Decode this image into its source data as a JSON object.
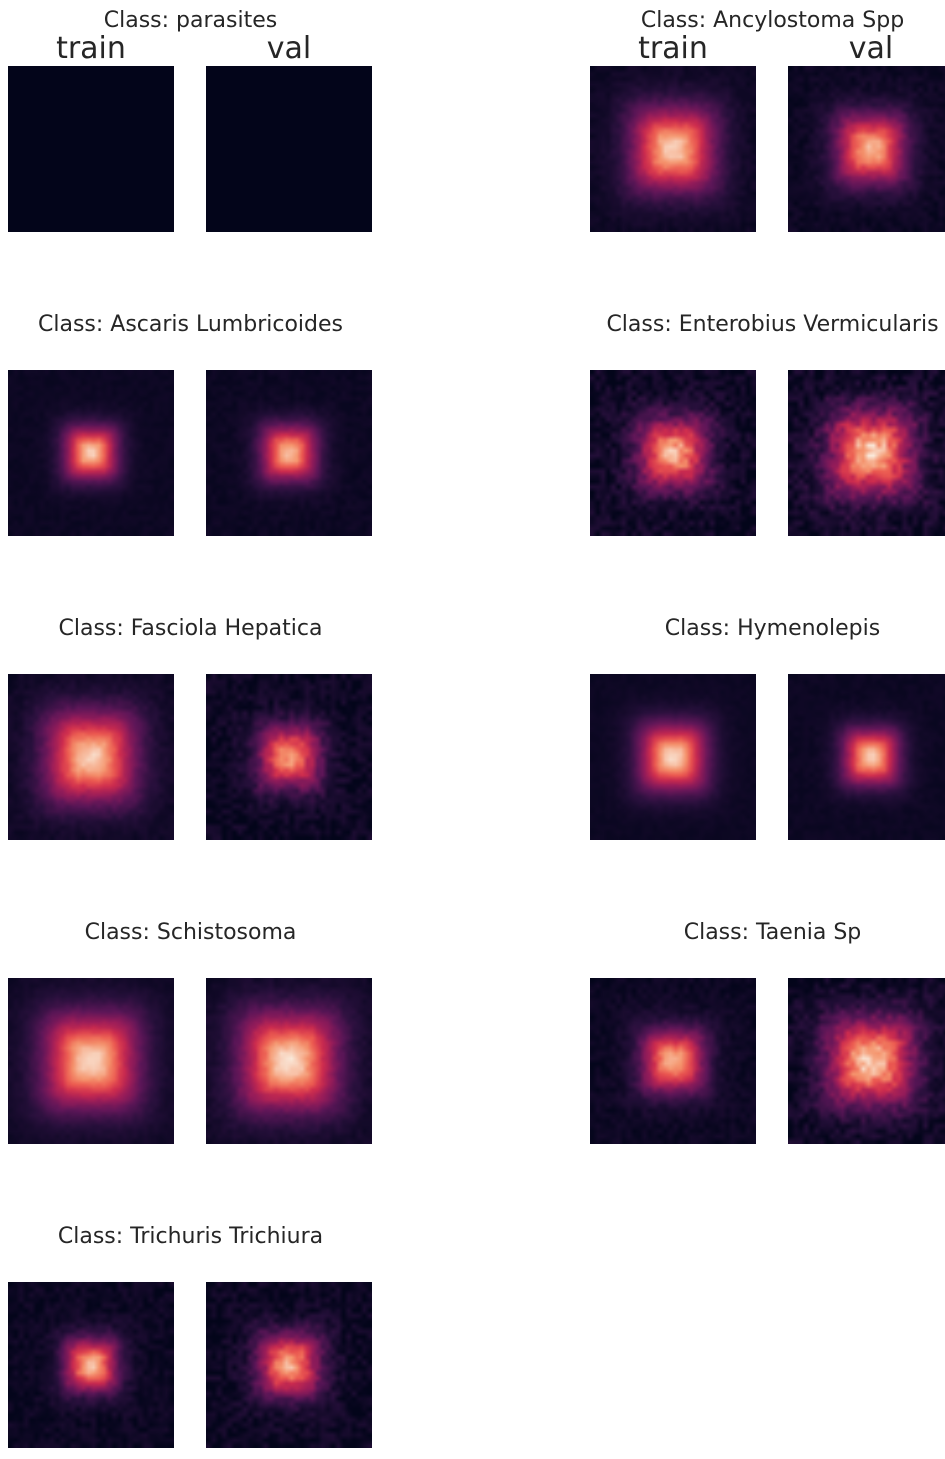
{
  "chart_data": {
    "type": "heatmap",
    "colormap": "rocket",
    "panels": [
      {
        "title": "Class: parasites",
        "labels": [
          "train",
          "val"
        ],
        "intensity": [
          0.0,
          0.0
        ],
        "spread": [
          0.55,
          0.55
        ],
        "noise": [
          0.0,
          0.0
        ]
      },
      {
        "title": "Class: Ancylostoma Spp",
        "labels": [
          "train",
          "val"
        ],
        "intensity": [
          0.95,
          0.9
        ],
        "spread": [
          0.6,
          0.5
        ],
        "noise": [
          0.06,
          0.08
        ]
      },
      {
        "title": "Class: Ascaris Lumbricoides",
        "labels": [],
        "intensity": [
          0.95,
          0.92
        ],
        "spread": [
          0.38,
          0.4
        ],
        "noise": [
          0.04,
          0.05
        ]
      },
      {
        "title": "Class: Enterobius Vermicularis",
        "labels": [],
        "intensity": [
          0.9,
          0.95
        ],
        "spread": [
          0.5,
          0.6
        ],
        "noise": [
          0.18,
          0.2
        ]
      },
      {
        "title": "Class: Fasciola Hepatica",
        "labels": [],
        "intensity": [
          0.95,
          0.85
        ],
        "spread": [
          0.65,
          0.45
        ],
        "noise": [
          0.06,
          0.14
        ]
      },
      {
        "title": "Class: Hymenolepis",
        "labels": [],
        "intensity": [
          0.97,
          0.95
        ],
        "spread": [
          0.48,
          0.4
        ],
        "noise": [
          0.03,
          0.04
        ]
      },
      {
        "title": "Class: Schistosoma",
        "labels": [],
        "intensity": [
          0.97,
          0.98
        ],
        "spread": [
          0.68,
          0.7
        ],
        "noise": [
          0.04,
          0.06
        ]
      },
      {
        "title": "Class: Taenia Sp",
        "labels": [],
        "intensity": [
          0.9,
          0.95
        ],
        "spread": [
          0.45,
          0.62
        ],
        "noise": [
          0.08,
          0.16
        ]
      },
      {
        "title": "Class: Trichuris Trichiura",
        "labels": [],
        "intensity": [
          0.92,
          0.88
        ],
        "spread": [
          0.38,
          0.45
        ],
        "noise": [
          0.1,
          0.14
        ]
      }
    ]
  }
}
